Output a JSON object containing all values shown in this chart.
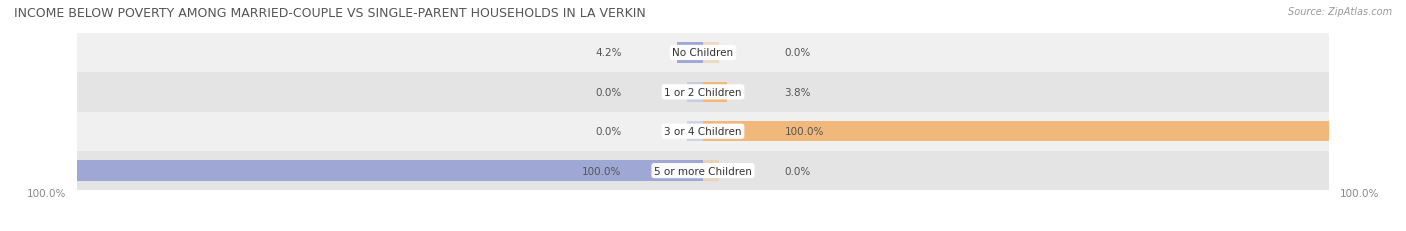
{
  "title": "INCOME BELOW POVERTY AMONG MARRIED-COUPLE VS SINGLE-PARENT HOUSEHOLDS IN LA VERKIN",
  "source": "Source: ZipAtlas.com",
  "categories": [
    "No Children",
    "1 or 2 Children",
    "3 or 4 Children",
    "5 or more Children"
  ],
  "married_values": [
    4.2,
    0.0,
    0.0,
    100.0
  ],
  "single_values": [
    0.0,
    3.8,
    100.0,
    0.0
  ],
  "married_color": "#9fa8d5",
  "single_color": "#f0b87a",
  "row_bg_colors": [
    "#f0f0f0",
    "#e4e4e4"
  ],
  "title_fontsize": 9,
  "label_fontsize": 7.5,
  "category_fontsize": 7.5,
  "legend_fontsize": 8,
  "source_fontsize": 7,
  "bar_height": 0.52,
  "max_value": 100.0,
  "bottom_axis_label": "100.0%"
}
